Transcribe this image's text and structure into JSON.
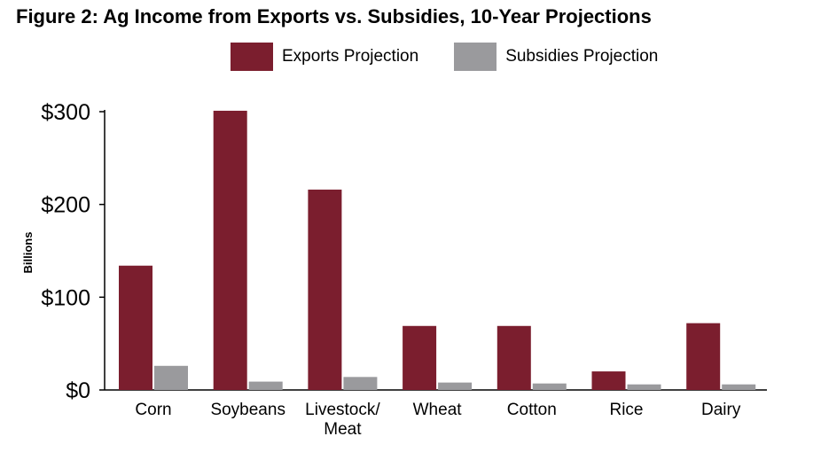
{
  "chart_data": {
    "type": "bar",
    "title": "Figure 2: Ag Income from Exports vs. Subsidies, 10-Year Projections",
    "ylabel": "Billions",
    "xlabel": "",
    "ylim": [
      0,
      300
    ],
    "yticks": [
      0,
      100,
      200,
      300
    ],
    "ytick_labels": [
      "$0",
      "$100",
      "$200",
      "$300"
    ],
    "categories": [
      [
        "Corn"
      ],
      [
        "Soybeans"
      ],
      [
        "Livestock/",
        "Meat"
      ],
      [
        "Wheat"
      ],
      [
        "Cotton"
      ],
      [
        "Rice"
      ],
      [
        "Dairy"
      ]
    ],
    "series": [
      {
        "name": "Exports Projection",
        "color": "#7b1e2e",
        "values": [
          134,
          301,
          216,
          69,
          69,
          20,
          72
        ]
      },
      {
        "name": "Subsidies Projection",
        "color": "#9a9a9d",
        "values": [
          26,
          9,
          14,
          8,
          7,
          6,
          6
        ]
      }
    ],
    "grid": false,
    "legend_position": "top"
  }
}
